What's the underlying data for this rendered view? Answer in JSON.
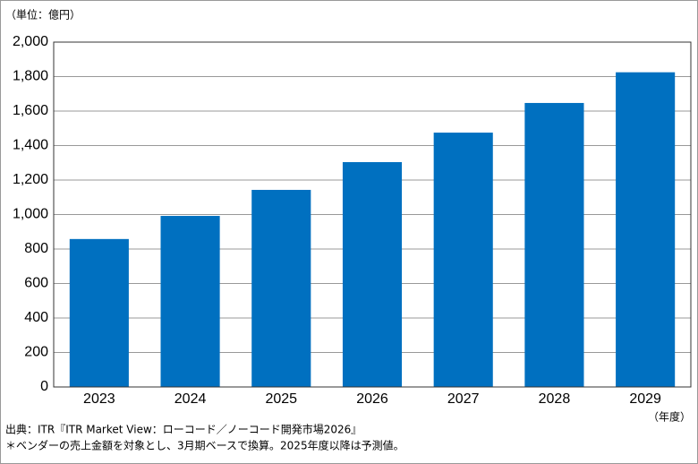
{
  "chart_data": {
    "type": "bar",
    "unit_label": "（単位：億円）",
    "x_unit_label": "（年度）",
    "source": "出典：ITR『ITR Market View：ローコード／ノーコード開発市場2026』",
    "note": "＊ベンダーの売上金額を対象とし、3月期ベースで換算。2025年度以降は予測値。",
    "categories": [
      "2023",
      "2024",
      "2025",
      "2026",
      "2027",
      "2028",
      "2029"
    ],
    "values": [
      858,
      992,
      1143,
      1304,
      1475,
      1647,
      1825
    ],
    "color": "#0070c0",
    "ylim": [
      0,
      2000
    ],
    "yticks": [
      0,
      200,
      400,
      600,
      800,
      {
        "value": 1000,
        "label": "1,000"
      },
      {
        "value": 1200,
        "label": "1,200"
      },
      {
        "value": 1400,
        "label": "1,400"
      },
      {
        "value": 1600,
        "label": "1,600"
      },
      {
        "value": 1800,
        "label": "1,800"
      },
      {
        "value": 2000,
        "label": "2,000"
      }
    ],
    "grid": true
  }
}
